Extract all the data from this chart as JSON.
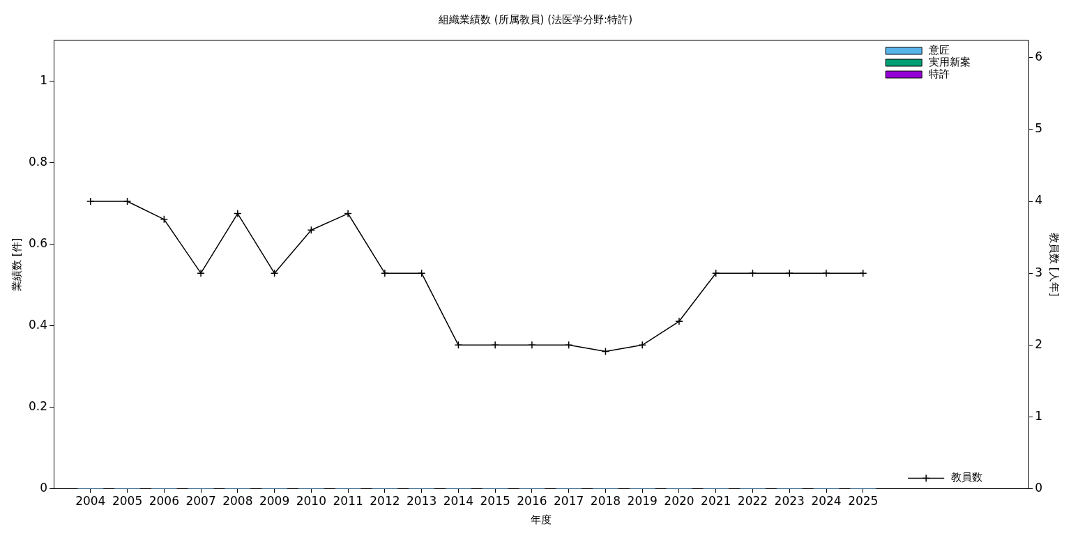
{
  "chart_data": {
    "type": "bar",
    "title": "組織業績数 (所属教員) (法医学分野:特許)",
    "xlabel": "年度",
    "ylabel": "業績数 [件]",
    "y2label": "教員数 [人年]",
    "x": [
      2004,
      2005,
      2006,
      2007,
      2008,
      2009,
      2010,
      2011,
      2012,
      2013,
      2014,
      2015,
      2016,
      2017,
      2018,
      2019,
      2020,
      2021,
      2022,
      2023,
      2024,
      2025
    ],
    "xlim": [
      2003,
      2029.5
    ],
    "xticks": [
      2004,
      2005,
      2006,
      2007,
      2008,
      2009,
      2010,
      2011,
      2012,
      2013,
      2014,
      2015,
      2016,
      2017,
      2018,
      2019,
      2020,
      2021,
      2022,
      2023,
      2024,
      2025
    ],
    "ylim": [
      0,
      1.1
    ],
    "yticks": [
      0,
      0.2,
      0.4,
      0.6,
      0.8,
      1
    ],
    "y2lim": [
      0,
      6.24
    ],
    "y2ticks": [
      0,
      1,
      2,
      3,
      4,
      5,
      6
    ],
    "stacked": true,
    "legend": "top right",
    "marker": "cross",
    "line_style": "solid",
    "series": [
      {
        "name": "意匠",
        "color": "#56b4e9",
        "values": [
          0,
          0,
          0,
          0,
          0,
          0,
          0,
          0,
          0,
          0,
          0,
          0,
          0,
          0,
          0,
          0,
          0,
          0,
          0,
          0,
          0,
          0
        ]
      },
      {
        "name": "実用新案",
        "color": "#009e73",
        "values": [
          0,
          0,
          0,
          0,
          0,
          0,
          0,
          0,
          0,
          0,
          0,
          0,
          0,
          0,
          0,
          0,
          0,
          0,
          0,
          0,
          0,
          0
        ]
      },
      {
        "name": "特許",
        "color": "#9400d3",
        "values": [
          0,
          0,
          0,
          0,
          0,
          0,
          0,
          0,
          0,
          0,
          0,
          0,
          0,
          0,
          0,
          0,
          0,
          0,
          0,
          0,
          0,
          0
        ]
      },
      {
        "name": "教員数",
        "type": "line",
        "axis": "y2",
        "color": "#000000",
        "values": [
          4,
          4,
          3.75,
          3,
          3.83,
          3,
          3.6,
          3.83,
          3,
          3,
          2,
          2,
          2,
          2,
          1.91,
          2,
          2.33,
          3,
          3,
          3,
          3,
          3
        ]
      }
    ]
  }
}
